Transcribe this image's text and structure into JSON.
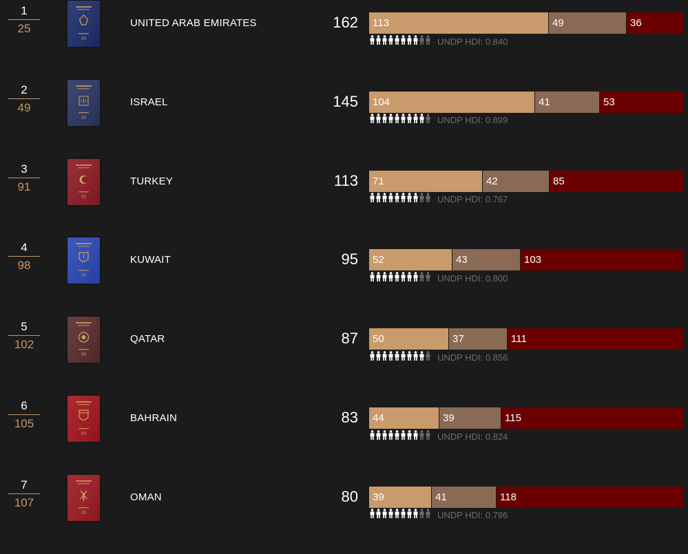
{
  "rows": [
    {
      "rank": "1",
      "global_rank": "25",
      "country": "UNITED ARAB EMIRATES",
      "score": "162",
      "visa_free": 113,
      "visa_on_arrival": 49,
      "visa_required": 36,
      "hdi_label": "UNDP HDI: 0.840",
      "hdi_people": 8,
      "passport_color": "#1c2d6b",
      "emblem": "falcon"
    },
    {
      "rank": "2",
      "global_rank": "49",
      "country": "ISRAEL",
      "score": "145",
      "visa_free": 104,
      "visa_on_arrival": 41,
      "visa_required": 53,
      "hdi_label": "UNDP HDI: 0.899",
      "hdi_people": 9,
      "passport_color": "#2a3563",
      "emblem": "menorah"
    },
    {
      "rank": "3",
      "global_rank": "91",
      "country": "TURKEY",
      "score": "113",
      "visa_free": 71,
      "visa_on_arrival": 42,
      "visa_required": 85,
      "hdi_label": "UNDP HDI: 0.767",
      "hdi_people": 8,
      "passport_color": "#8e1b24",
      "emblem": "crescent"
    },
    {
      "rank": "4",
      "global_rank": "98",
      "country": "KUWAIT",
      "score": "95",
      "visa_free": 52,
      "visa_on_arrival": 43,
      "visa_required": 103,
      "hdi_label": "UNDP HDI: 0.800",
      "hdi_people": 8,
      "passport_color": "#2a47b5",
      "emblem": "dhow"
    },
    {
      "rank": "5",
      "global_rank": "102",
      "country": "QATAR",
      "score": "87",
      "visa_free": 50,
      "visa_on_arrival": 37,
      "visa_required": 111,
      "hdi_label": "UNDP HDI: 0.856",
      "hdi_people": 9,
      "passport_color": "#5a2b2e",
      "emblem": "seal"
    },
    {
      "rank": "6",
      "global_rank": "105",
      "country": "BAHRAIN",
      "score": "83",
      "visa_free": 44,
      "visa_on_arrival": 39,
      "visa_required": 115,
      "hdi_label": "UNDP HDI: 0.824",
      "hdi_people": 8,
      "passport_color": "#a3151f",
      "emblem": "shield"
    },
    {
      "rank": "7",
      "global_rank": "107",
      "country": "OMAN",
      "score": "80",
      "visa_free": 39,
      "visa_on_arrival": 41,
      "visa_required": 118,
      "hdi_label": "UNDP HDI: 0.796",
      "hdi_people": 8,
      "passport_color": "#9b1a22",
      "emblem": "khanjar"
    }
  ],
  "colors": {
    "visa_free": "#c99a6b",
    "visa_on_arrival": "#8a6a54",
    "visa_required": "#6a0000",
    "rank_global": "#c8976a",
    "hdi_text": "#6d6d6d"
  }
}
